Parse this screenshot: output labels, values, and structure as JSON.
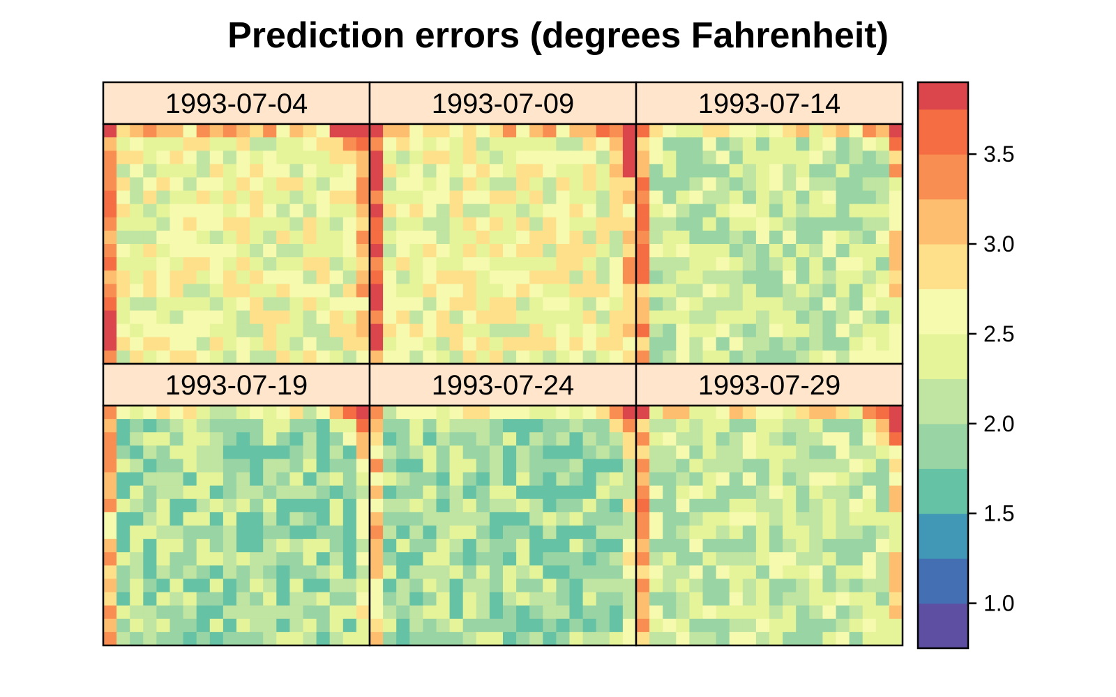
{
  "chart_data": {
    "type": "heatmap",
    "title": "Prediction errors (degrees Fahrenheit)",
    "panels": [
      {
        "label": "1993-07-04"
      },
      {
        "label": "1993-07-09"
      },
      {
        "label": "1993-07-14"
      },
      {
        "label": "1993-07-19"
      },
      {
        "label": "1993-07-24"
      },
      {
        "label": "1993-07-29"
      }
    ],
    "grid_size": [
      20,
      18
    ],
    "colorbar": {
      "range": [
        0.75,
        3.9
      ],
      "breaks": [
        0.75,
        1.0,
        1.25,
        1.5,
        1.75,
        2.0,
        2.25,
        2.5,
        2.75,
        3.0,
        3.25,
        3.5,
        3.75,
        3.9
      ],
      "colors": [
        "#5E4FA2",
        "#4470B3",
        "#4098B6",
        "#66C2A5",
        "#99D5A4",
        "#C0E4A1",
        "#E5F499",
        "#F6FAAF",
        "#FEE08B",
        "#FDBE6F",
        "#F98E52",
        "#F46D43",
        "#DA464C",
        "#C1274A",
        "#9E0142"
      ],
      "ticks": [
        1.0,
        1.5,
        2.0,
        2.5,
        3.0,
        3.5
      ],
      "tick_labels": [
        "1.0",
        "1.5",
        "2.0",
        "2.5",
        "3.0",
        "3.5"
      ]
    }
  }
}
